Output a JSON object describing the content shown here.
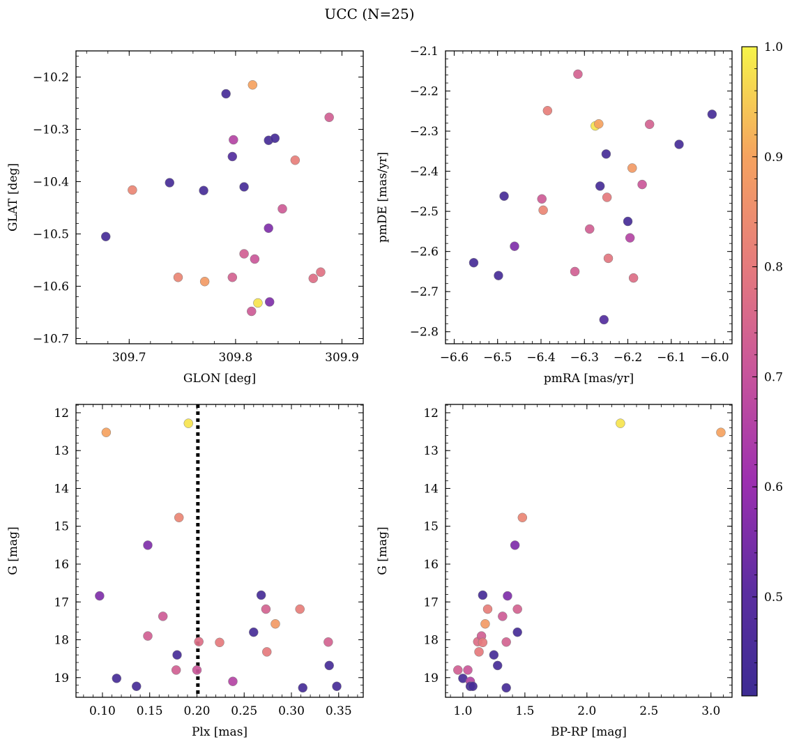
{
  "figure": {
    "title": "UCC (N=25)"
  },
  "colorbar": {
    "min": 0.41,
    "max": 1.0,
    "ticks": [
      0.5,
      0.6,
      0.7,
      0.8,
      0.9,
      1.0
    ],
    "tick_labels": [
      "0.5",
      "0.6",
      "0.7",
      "0.8",
      "0.9",
      "1.0"
    ],
    "colormap": "plasma"
  },
  "chart_data": [
    {
      "type": "scatter",
      "xlabel": "GLON [deg]",
      "ylabel": "GLAT [deg]",
      "xlim": [
        309.65,
        309.92
      ],
      "ylim": [
        -10.71,
        -10.15
      ],
      "xticks": [
        309.7,
        309.8,
        309.9
      ],
      "xtick_labels": [
        "309.7",
        "309.8",
        "309.9"
      ],
      "yticks": [
        -10.2,
        -10.3,
        -10.4,
        -10.5,
        -10.6,
        -10.7
      ],
      "ytick_labels": [
        "−10.2",
        "−10.3",
        "−10.4",
        "−10.5",
        "−10.6",
        "−10.7"
      ],
      "points": [
        {
          "x": 309.678,
          "y": -10.505,
          "c": 0.44
        },
        {
          "x": 309.703,
          "y": -10.416,
          "c": 0.83
        },
        {
          "x": 309.738,
          "y": -10.402,
          "c": 0.44
        },
        {
          "x": 309.746,
          "y": -10.583,
          "c": 0.83
        },
        {
          "x": 309.77,
          "y": -10.417,
          "c": 0.44
        },
        {
          "x": 309.771,
          "y": -10.591,
          "c": 0.88
        },
        {
          "x": 309.791,
          "y": -10.232,
          "c": 0.44
        },
        {
          "x": 309.797,
          "y": -10.352,
          "c": 0.48
        },
        {
          "x": 309.797,
          "y": -10.583,
          "c": 0.74
        },
        {
          "x": 309.798,
          "y": -10.32,
          "c": 0.66
        },
        {
          "x": 309.808,
          "y": -10.41,
          "c": 0.44
        },
        {
          "x": 309.808,
          "y": -10.538,
          "c": 0.73
        },
        {
          "x": 309.815,
          "y": -10.648,
          "c": 0.72
        },
        {
          "x": 309.816,
          "y": -10.215,
          "c": 0.9
        },
        {
          "x": 309.818,
          "y": -10.548,
          "c": 0.71
        },
        {
          "x": 309.821,
          "y": -10.632,
          "c": 0.98
        },
        {
          "x": 309.831,
          "y": -10.321,
          "c": 0.44
        },
        {
          "x": 309.831,
          "y": -10.489,
          "c": 0.56
        },
        {
          "x": 309.832,
          "y": -10.63,
          "c": 0.56
        },
        {
          "x": 309.837,
          "y": -10.317,
          "c": 0.44
        },
        {
          "x": 309.844,
          "y": -10.452,
          "c": 0.72
        },
        {
          "x": 309.856,
          "y": -10.359,
          "c": 0.81
        },
        {
          "x": 309.873,
          "y": -10.585,
          "c": 0.77
        },
        {
          "x": 309.88,
          "y": -10.573,
          "c": 0.78
        },
        {
          "x": 309.888,
          "y": -10.277,
          "c": 0.73
        }
      ]
    },
    {
      "type": "scatter",
      "xlabel": "pmRA [mas/yr]",
      "ylabel": "pmDE [mas/yr]",
      "xlim": [
        -6.62,
        -5.96
      ],
      "ylim": [
        -2.83,
        -2.1
      ],
      "xticks": [
        -6.6,
        -6.5,
        -6.4,
        -6.3,
        -6.2,
        -6.1,
        -6.0
      ],
      "xtick_labels": [
        "−6.6",
        "−6.5",
        "−6.4",
        "−6.3",
        "−6.2",
        "−6.1",
        "−6.0"
      ],
      "yticks": [
        -2.1,
        -2.2,
        -2.3,
        -2.4,
        -2.5,
        -2.6,
        -2.7,
        -2.8
      ],
      "ytick_labels": [
        "−2.1",
        "−2.2",
        "−2.3",
        "−2.4",
        "−2.5",
        "−2.6",
        "−2.7",
        "−2.8"
      ],
      "points": [
        {
          "x": -6.555,
          "y": -2.628,
          "c": 0.44
        },
        {
          "x": -6.498,
          "y": -2.66,
          "c": 0.44
        },
        {
          "x": -6.485,
          "y": -2.462,
          "c": 0.44
        },
        {
          "x": -6.461,
          "y": -2.587,
          "c": 0.56
        },
        {
          "x": -6.398,
          "y": -2.469,
          "c": 0.72
        },
        {
          "x": -6.395,
          "y": -2.497,
          "c": 0.83
        },
        {
          "x": -6.385,
          "y": -2.249,
          "c": 0.81
        },
        {
          "x": -6.322,
          "y": -2.65,
          "c": 0.73
        },
        {
          "x": -6.315,
          "y": -2.158,
          "c": 0.74
        },
        {
          "x": -6.288,
          "y": -2.544,
          "c": 0.73
        },
        {
          "x": -6.275,
          "y": -2.287,
          "c": 0.98
        },
        {
          "x": -6.267,
          "y": -2.282,
          "c": 0.9
        },
        {
          "x": -6.264,
          "y": -2.437,
          "c": 0.44
        },
        {
          "x": -6.255,
          "y": -2.77,
          "c": 0.48
        },
        {
          "x": -6.25,
          "y": -2.357,
          "c": 0.44
        },
        {
          "x": -6.248,
          "y": -2.465,
          "c": 0.8
        },
        {
          "x": -6.245,
          "y": -2.617,
          "c": 0.79
        },
        {
          "x": -6.2,
          "y": -2.525,
          "c": 0.44
        },
        {
          "x": -6.195,
          "y": -2.566,
          "c": 0.66
        },
        {
          "x": -6.19,
          "y": -2.392,
          "c": 0.88
        },
        {
          "x": -6.187,
          "y": -2.666,
          "c": 0.77
        },
        {
          "x": -6.167,
          "y": -2.433,
          "c": 0.71
        },
        {
          "x": -6.15,
          "y": -2.283,
          "c": 0.74
        },
        {
          "x": -6.082,
          "y": -2.333,
          "c": 0.44
        },
        {
          "x": -6.006,
          "y": -2.258,
          "c": 0.44
        }
      ]
    },
    {
      "type": "scatter",
      "xlabel": "Plx [mas]",
      "ylabel": "G [mag]",
      "xlim": [
        0.072,
        0.376
      ],
      "ylim": [
        19.52,
        11.78
      ],
      "y_inverted": true,
      "xticks": [
        0.1,
        0.15,
        0.2,
        0.25,
        0.3,
        0.35
      ],
      "xtick_labels": [
        "0.10",
        "0.15",
        "0.20",
        "0.25",
        "0.30",
        "0.35"
      ],
      "yticks": [
        12,
        13,
        14,
        15,
        16,
        17,
        18,
        19
      ],
      "ytick_labels": [
        "12",
        "13",
        "14",
        "15",
        "16",
        "17",
        "18",
        "19"
      ],
      "vline": {
        "x": 0.201,
        "style": "dotted"
      },
      "points": [
        {
          "x": 0.097,
          "y": 16.84,
          "c": 0.56
        },
        {
          "x": 0.104,
          "y": 12.52,
          "c": 0.9
        },
        {
          "x": 0.115,
          "y": 19.02,
          "c": 0.44
        },
        {
          "x": 0.136,
          "y": 19.23,
          "c": 0.44
        },
        {
          "x": 0.148,
          "y": 15.5,
          "c": 0.56
        },
        {
          "x": 0.148,
          "y": 17.9,
          "c": 0.73
        },
        {
          "x": 0.164,
          "y": 17.38,
          "c": 0.72
        },
        {
          "x": 0.178,
          "y": 18.8,
          "c": 0.73
        },
        {
          "x": 0.179,
          "y": 18.4,
          "c": 0.44
        },
        {
          "x": 0.181,
          "y": 14.77,
          "c": 0.83
        },
        {
          "x": 0.191,
          "y": 12.28,
          "c": 0.98
        },
        {
          "x": 0.2,
          "y": 18.8,
          "c": 0.71
        },
        {
          "x": 0.202,
          "y": 18.05,
          "c": 0.77
        },
        {
          "x": 0.224,
          "y": 18.07,
          "c": 0.8
        },
        {
          "x": 0.238,
          "y": 19.1,
          "c": 0.66
        },
        {
          "x": 0.26,
          "y": 17.8,
          "c": 0.44
        },
        {
          "x": 0.268,
          "y": 16.82,
          "c": 0.44
        },
        {
          "x": 0.273,
          "y": 17.19,
          "c": 0.74
        },
        {
          "x": 0.274,
          "y": 18.32,
          "c": 0.8
        },
        {
          "x": 0.283,
          "y": 17.58,
          "c": 0.88
        },
        {
          "x": 0.309,
          "y": 17.19,
          "c": 0.81
        },
        {
          "x": 0.312,
          "y": 19.27,
          "c": 0.44
        },
        {
          "x": 0.339,
          "y": 18.06,
          "c": 0.74
        },
        {
          "x": 0.34,
          "y": 18.68,
          "c": 0.44
        },
        {
          "x": 0.348,
          "y": 19.23,
          "c": 0.44
        }
      ]
    },
    {
      "type": "scatter",
      "xlabel": "BP-RP [mag]",
      "ylabel": "G [mag]",
      "xlim": [
        0.86,
        3.17
      ],
      "ylim": [
        19.52,
        11.78
      ],
      "y_inverted": true,
      "xticks": [
        1.0,
        1.5,
        2.0,
        2.5,
        3.0
      ],
      "xtick_labels": [
        "1.0",
        "1.5",
        "2.0",
        "2.5",
        "3.0"
      ],
      "yticks": [
        12,
        13,
        14,
        15,
        16,
        17,
        18,
        19
      ],
      "ytick_labels": [
        "12",
        "13",
        "14",
        "15",
        "16",
        "17",
        "18",
        "19"
      ],
      "points": [
        {
          "x": 0.96,
          "y": 18.8,
          "c": 0.73
        },
        {
          "x": 1.0,
          "y": 19.02,
          "c": 0.44
        },
        {
          "x": 1.04,
          "y": 18.8,
          "c": 0.71
        },
        {
          "x": 1.06,
          "y": 19.1,
          "c": 0.66
        },
        {
          "x": 1.06,
          "y": 19.23,
          "c": 0.44
        },
        {
          "x": 1.08,
          "y": 19.23,
          "c": 0.44
        },
        {
          "x": 1.12,
          "y": 18.05,
          "c": 0.77
        },
        {
          "x": 1.13,
          "y": 18.32,
          "c": 0.8
        },
        {
          "x": 1.15,
          "y": 17.9,
          "c": 0.73
        },
        {
          "x": 1.16,
          "y": 18.07,
          "c": 0.8
        },
        {
          "x": 1.16,
          "y": 16.82,
          "c": 0.44
        },
        {
          "x": 1.18,
          "y": 17.58,
          "c": 0.88
        },
        {
          "x": 1.2,
          "y": 17.19,
          "c": 0.81
        },
        {
          "x": 1.25,
          "y": 18.4,
          "c": 0.44
        },
        {
          "x": 1.28,
          "y": 18.68,
          "c": 0.44
        },
        {
          "x": 1.32,
          "y": 17.38,
          "c": 0.72
        },
        {
          "x": 1.35,
          "y": 18.06,
          "c": 0.74
        },
        {
          "x": 1.35,
          "y": 19.27,
          "c": 0.44
        },
        {
          "x": 1.36,
          "y": 16.84,
          "c": 0.56
        },
        {
          "x": 1.42,
          "y": 15.5,
          "c": 0.56
        },
        {
          "x": 1.44,
          "y": 17.19,
          "c": 0.74
        },
        {
          "x": 1.44,
          "y": 17.8,
          "c": 0.44
        },
        {
          "x": 1.48,
          "y": 14.77,
          "c": 0.83
        },
        {
          "x": 2.27,
          "y": 12.28,
          "c": 0.98
        },
        {
          "x": 3.08,
          "y": 12.52,
          "c": 0.9
        }
      ]
    }
  ]
}
